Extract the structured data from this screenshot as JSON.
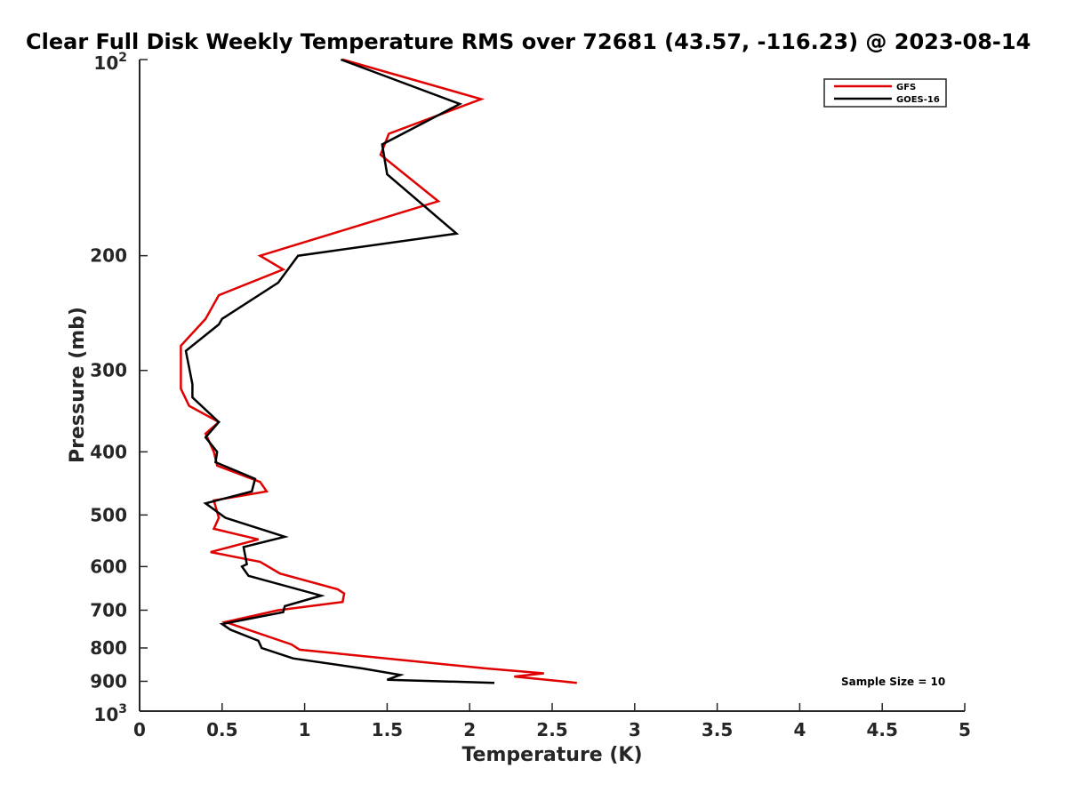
{
  "chart_data": {
    "type": "line",
    "title": "Clear Full Disk Weekly Temperature RMS over 72681 (43.57, -116.23) @ 2023-08-14",
    "xlabel": "Temperature (K)",
    "ylabel": "Pressure (mb)",
    "xlim": [
      0,
      5
    ],
    "ylim": [
      1000,
      100
    ],
    "y_scale": "log",
    "y_reversed": true,
    "x_ticks": [
      "0",
      "0.5",
      "1",
      "1.5",
      "2",
      "2.5",
      "3",
      "3.5",
      "4",
      "4.5",
      "5"
    ],
    "y_ticks": [
      {
        "value": 100,
        "base": "10",
        "exp": "2"
      },
      {
        "value": 200,
        "label": "200"
      },
      {
        "value": 300,
        "label": "300"
      },
      {
        "value": 400,
        "label": "400"
      },
      {
        "value": 500,
        "label": "500"
      },
      {
        "value": 600,
        "label": "600"
      },
      {
        "value": 700,
        "label": "700"
      },
      {
        "value": 800,
        "label": "800"
      },
      {
        "value": 900,
        "label": "900"
      },
      {
        "value": 1000,
        "base": "10",
        "exp": "3"
      }
    ],
    "legend_position": "top-right",
    "grid": false,
    "annotation": "Sample Size = 10",
    "series": [
      {
        "name": "GFS",
        "color": "#e00000",
        "points": [
          [
            1.23,
            100
          ],
          [
            2.07,
            115
          ],
          [
            1.51,
            130
          ],
          [
            1.46,
            140
          ],
          [
            1.81,
            165
          ],
          [
            0.73,
            200
          ],
          [
            0.87,
            210
          ],
          [
            0.48,
            230
          ],
          [
            0.4,
            250
          ],
          [
            0.25,
            275
          ],
          [
            0.25,
            300
          ],
          [
            0.25,
            320
          ],
          [
            0.3,
            340
          ],
          [
            0.48,
            360
          ],
          [
            0.4,
            375
          ],
          [
            0.45,
            400
          ],
          [
            0.47,
            420
          ],
          [
            0.73,
            445
          ],
          [
            0.77,
            460
          ],
          [
            0.45,
            475
          ],
          [
            0.48,
            505
          ],
          [
            0.45,
            525
          ],
          [
            0.72,
            545
          ],
          [
            0.43,
            570
          ],
          [
            0.73,
            590
          ],
          [
            0.85,
            615
          ],
          [
            1.2,
            650
          ],
          [
            1.24,
            660
          ],
          [
            1.23,
            680
          ],
          [
            0.84,
            700
          ],
          [
            0.52,
            730
          ],
          [
            0.92,
            790
          ],
          [
            0.97,
            805
          ],
          [
            2.1,
            860
          ],
          [
            2.45,
            875
          ],
          [
            2.27,
            885
          ],
          [
            2.65,
            905
          ]
        ]
      },
      {
        "name": "GOES-16",
        "color": "#000000",
        "points": [
          [
            1.22,
            100
          ],
          [
            1.94,
            117
          ],
          [
            1.47,
            135
          ],
          [
            1.5,
            150
          ],
          [
            1.92,
            185
          ],
          [
            0.96,
            200
          ],
          [
            0.84,
            220
          ],
          [
            0.5,
            250
          ],
          [
            0.48,
            255
          ],
          [
            0.28,
            280
          ],
          [
            0.32,
            315
          ],
          [
            0.32,
            330
          ],
          [
            0.48,
            360
          ],
          [
            0.4,
            380
          ],
          [
            0.47,
            400
          ],
          [
            0.46,
            415
          ],
          [
            0.7,
            440
          ],
          [
            0.68,
            460
          ],
          [
            0.4,
            480
          ],
          [
            0.52,
            505
          ],
          [
            0.88,
            540
          ],
          [
            0.63,
            560
          ],
          [
            0.65,
            595
          ],
          [
            0.62,
            600
          ],
          [
            0.66,
            620
          ],
          [
            1.1,
            665
          ],
          [
            0.88,
            690
          ],
          [
            0.87,
            705
          ],
          [
            0.5,
            735
          ],
          [
            0.55,
            750
          ],
          [
            0.72,
            780
          ],
          [
            0.74,
            800
          ],
          [
            0.93,
            830
          ],
          [
            1.35,
            860
          ],
          [
            1.58,
            880
          ],
          [
            1.5,
            895
          ],
          [
            2.15,
            905
          ]
        ]
      }
    ]
  }
}
